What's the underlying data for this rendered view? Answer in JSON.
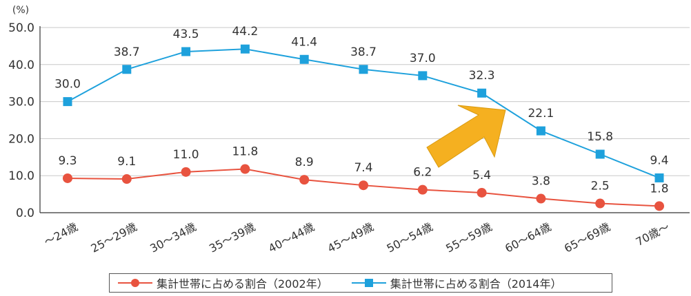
{
  "chart_data": {
    "type": "line",
    "unit_label": "(%)",
    "ylim": [
      0,
      50
    ],
    "yticks": [
      "0.0",
      "10.0",
      "20.0",
      "30.0",
      "40.0",
      "50.0"
    ],
    "grid": true,
    "legend_placement": "bottom",
    "categories": [
      "〜24歳",
      "25〜29歳",
      "30〜34歳",
      "35〜39歳",
      "40〜44歳",
      "45〜49歳",
      "50〜54歳",
      "55〜59歳",
      "60〜64歳",
      "65〜69歳",
      "70歳〜"
    ],
    "series": [
      {
        "name": "集計世帯に占める割合（2002年）",
        "color": "#e8533f",
        "marker": "circle",
        "values": [
          9.3,
          9.1,
          11.0,
          11.8,
          8.9,
          7.4,
          6.2,
          5.4,
          3.8,
          2.5,
          1.8
        ],
        "labels": [
          "9.3",
          "9.1",
          "11.0",
          "11.8",
          "8.9",
          "7.4",
          "6.2",
          "5.4",
          "3.8",
          "2.5",
          "1.8"
        ]
      },
      {
        "name": "集計世帯に占める割合（2014年）",
        "color": "#1ea1dc",
        "marker": "square",
        "values": [
          30.0,
          38.7,
          43.5,
          44.2,
          41.4,
          38.7,
          37.0,
          32.3,
          22.1,
          15.8,
          9.4
        ],
        "labels": [
          "30.0",
          "38.7",
          "43.5",
          "44.2",
          "41.4",
          "38.7",
          "37.0",
          "32.3",
          "22.1",
          "15.8",
          "9.4"
        ]
      }
    ],
    "annotation": {
      "shape": "arrow",
      "color": "#f5b020",
      "direction": "up-right"
    }
  }
}
